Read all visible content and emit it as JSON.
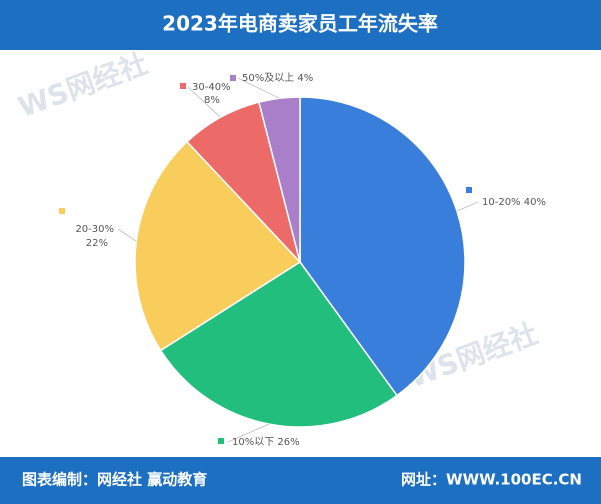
{
  "header": {
    "title": "2023年电商卖家员工年流失率"
  },
  "chart_data": {
    "type": "pie",
    "categories": [
      "10-20%",
      "10%以下",
      "20-30%",
      "30-40%",
      "50%及以上"
    ],
    "values": [
      40,
      26,
      22,
      8,
      4
    ],
    "value_labels": [
      "40%",
      "26%",
      "22%",
      "8%",
      "4%"
    ],
    "colors": [
      "#3a7edb",
      "#21be7e",
      "#f8cd5c",
      "#ec6b68",
      "#a97fca"
    ]
  },
  "watermark": "WS网经社",
  "footer": {
    "source": "图表编制：网经社 赢动教育",
    "site": "网址：WWW.100EC.CN"
  }
}
